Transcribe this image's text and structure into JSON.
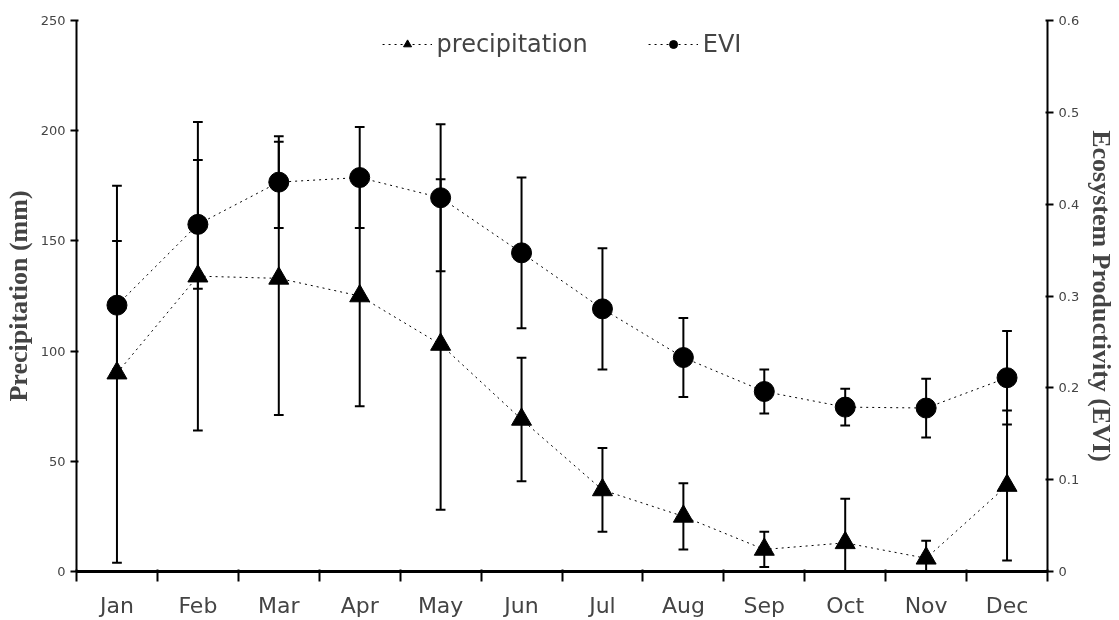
{
  "chart_data": {
    "type": "line",
    "ylabel": "Precipitation (mm)",
    "y2label": "Ecosystem Productivity (EVI)",
    "categories": [
      "Jan",
      "Feb",
      "Mar",
      "Apr",
      "May",
      "Jun",
      "Jul",
      "Aug",
      "Sep",
      "Oct",
      "Nov",
      "Dec"
    ],
    "series": [
      {
        "name": "precipitation",
        "color": "#000000",
        "marker": "triangle",
        "values": [
          90,
          134,
          133,
          125,
          103,
          69,
          37,
          25,
          10,
          13,
          6,
          39
        ],
        "errors": [
          [
            4,
            175
          ],
          70,
          62,
          50,
          75,
          28,
          19,
          15,
          8,
          [
            0,
            33
          ],
          [
            0,
            14
          ],
          34
        ]
      },
      {
        "name": "EVI",
        "color": "#000000",
        "marker": "circle",
        "axis": "y2",
        "values": [
          0.29,
          0.378,
          0.424,
          0.429,
          0.407,
          0.347,
          0.286,
          0.233,
          0.196,
          0.179,
          0.178,
          0.211
        ],
        "errors": [
          0.07,
          0.07,
          0.05,
          0.055,
          0.08,
          0.082,
          0.066,
          0.043,
          0.024,
          0.02,
          0.032,
          0.051
        ]
      }
    ],
    "ylim": [
      0,
      250
    ],
    "yticks": [
      0,
      50,
      100,
      150,
      200,
      250
    ],
    "y2lim": [
      0,
      0.6
    ],
    "y2ticks": [
      0,
      0.1,
      0.2,
      0.3,
      0.4,
      0.5,
      0.6
    ],
    "line_style": "dotted",
    "grid": false,
    "legend": "top"
  }
}
